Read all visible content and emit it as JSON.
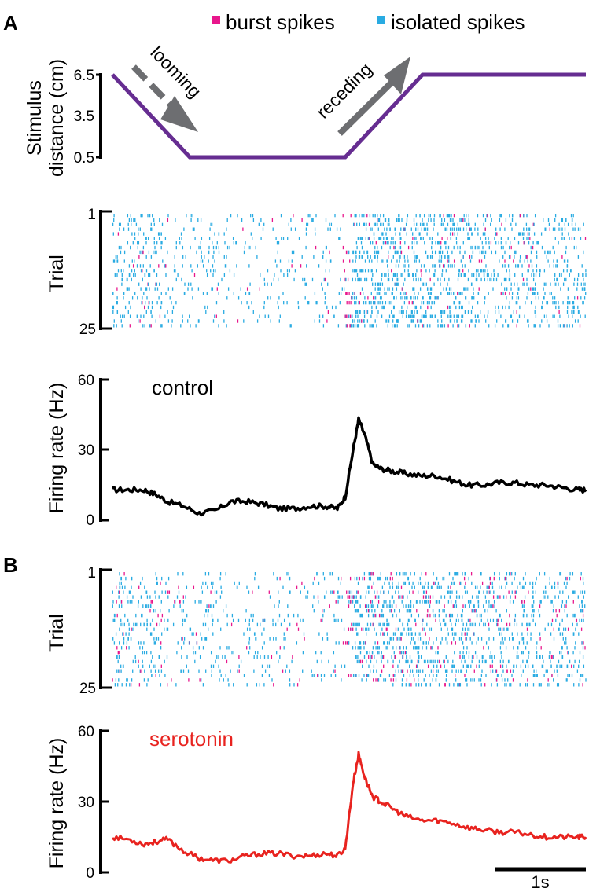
{
  "panel_labels": {
    "a": "A",
    "b": "B"
  },
  "legend": [
    {
      "label": "burst spikes",
      "color": "#e8168c"
    },
    {
      "label": "isolated spikes",
      "color": "#29abe2"
    }
  ],
  "colors": {
    "stimulus": "#662d91",
    "arrow": "#6d6e71",
    "control": "#000000",
    "serotonin": "#e8231f",
    "burst": "#e8168c",
    "isolated": "#29abe2"
  },
  "chart_data": [
    {
      "type": "line",
      "panel": "A",
      "ylabel_line1": "Stimulus",
      "ylabel_line2": "distance (cm)",
      "y_ticks": [
        "6.5",
        "3.5",
        "0.5"
      ],
      "ylim": [
        0.5,
        6.5
      ],
      "x_seconds": [
        0,
        0.98,
        2.95,
        3.93,
        6.0
      ],
      "y_cm": [
        6.5,
        0.5,
        0.5,
        6.5,
        6.5
      ],
      "annotations": [
        "looming",
        "receding"
      ]
    },
    {
      "type": "scatter",
      "panel": "A",
      "name": "raster-control",
      "ylabel": "Trial",
      "y_ticks": [
        "1",
        "25"
      ],
      "trials": 25,
      "xlim": [
        0,
        6.0
      ],
      "note": "spike raster; isolated spikes cyan, burst spikes magenta, dense onset near 2.95 s"
    },
    {
      "type": "line",
      "panel": "A",
      "series_label": "control",
      "ylabel": "Firing rate (Hz)",
      "y_ticks": [
        "60",
        "30",
        "0"
      ],
      "ylim": [
        0,
        60
      ],
      "xlim": [
        0,
        6.0
      ],
      "x": [
        0,
        0.2,
        0.4,
        0.55,
        0.7,
        0.9,
        1.1,
        1.3,
        1.5,
        1.7,
        1.9,
        2.1,
        2.3,
        2.5,
        2.7,
        2.85,
        2.95,
        3.05,
        3.12,
        3.2,
        3.3,
        3.4,
        3.55,
        3.7,
        3.9,
        4.1,
        4.3,
        4.5,
        4.7,
        4.9,
        5.1,
        5.3,
        5.5,
        5.7,
        5.9,
        6.0
      ],
      "y": [
        13,
        13,
        13,
        11,
        8,
        6,
        3,
        4,
        8,
        8,
        7,
        5,
        5,
        6,
        6,
        5,
        10,
        30,
        43,
        36,
        24,
        22,
        21,
        20,
        19,
        19,
        17,
        15,
        15,
        16,
        16,
        15,
        15,
        14,
        13,
        13
      ]
    },
    {
      "type": "scatter",
      "panel": "B",
      "name": "raster-serotonin",
      "ylabel": "Trial",
      "y_ticks": [
        "1",
        "25"
      ],
      "trials": 25,
      "xlim": [
        0,
        6.0
      ]
    },
    {
      "type": "line",
      "panel": "B",
      "series_label": "serotonin",
      "ylabel": "Firing rate (Hz)",
      "y_ticks": [
        "60",
        "30",
        "0"
      ],
      "ylim": [
        0,
        60
      ],
      "xlim": [
        0,
        6.0
      ],
      "x": [
        0,
        0.2,
        0.4,
        0.55,
        0.7,
        0.9,
        1.1,
        1.3,
        1.5,
        1.7,
        1.9,
        2.1,
        2.3,
        2.5,
        2.7,
        2.85,
        2.95,
        3.05,
        3.12,
        3.2,
        3.3,
        3.4,
        3.55,
        3.7,
        3.9,
        4.1,
        4.3,
        4.5,
        4.7,
        4.9,
        5.1,
        5.3,
        5.5,
        5.7,
        5.9,
        6.0
      ],
      "y": [
        15,
        14,
        12,
        13,
        14,
        9,
        6,
        5,
        5,
        7,
        8,
        8,
        7,
        7,
        8,
        7,
        10,
        38,
        50,
        40,
        32,
        30,
        27,
        24,
        22,
        22,
        21,
        19,
        18,
        17,
        17,
        16,
        15,
        15,
        15,
        15
      ]
    }
  ],
  "scale_bar": {
    "label": "1s",
    "seconds": 1
  }
}
